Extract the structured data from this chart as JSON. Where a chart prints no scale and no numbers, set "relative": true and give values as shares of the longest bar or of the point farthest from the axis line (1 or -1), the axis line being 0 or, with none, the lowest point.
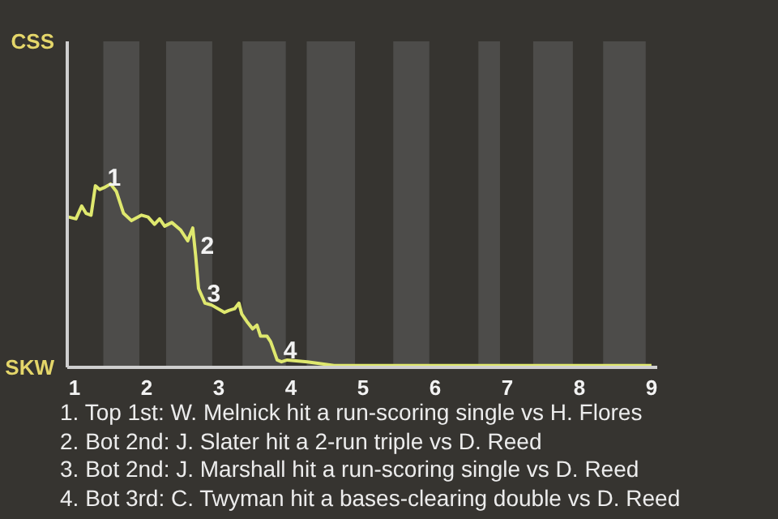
{
  "chart_data": {
    "type": "line",
    "relative": true,
    "x": [
      0.92,
      1.02,
      1.1,
      1.16,
      1.23,
      1.29,
      1.35,
      1.41,
      1.5,
      1.58,
      1.68,
      1.79,
      1.93,
      2.02,
      2.11,
      2.18,
      2.25,
      2.35,
      2.47,
      2.57,
      2.64,
      2.68,
      2.72,
      2.81,
      2.9,
      3.08,
      3.14,
      3.22,
      3.28,
      3.32,
      3.39,
      3.47,
      3.53,
      3.58,
      3.67,
      3.72,
      3.81,
      3.87,
      3.95,
      4.23,
      4.6,
      4.97,
      5.33,
      6.2,
      7.18,
      8.08,
      9
    ],
    "series": [
      {
        "color": "#dfe86e",
        "values": [
          0.82,
          0.81,
          0.88,
          0.84,
          0.83,
          0.99,
          0.97,
          0.98,
          1,
          0.96,
          0.84,
          0.8,
          0.83,
          0.82,
          0.78,
          0.81,
          0.77,
          0.79,
          0.75,
          0.69,
          0.76,
          0.61,
          0.43,
          0.35,
          0.34,
          0.3,
          0.31,
          0.32,
          0.35,
          0.29,
          0.25,
          0.21,
          0.23,
          0.17,
          0.17,
          0.14,
          0.04,
          0.03,
          0.04,
          0.03,
          0.01,
          0.01,
          0.01,
          0.01,
          0.01,
          0.01,
          0.01
        ]
      }
    ],
    "xlim": [
      0.9,
      9.08
    ],
    "xticks": [
      1,
      2,
      3,
      4,
      5,
      6,
      7,
      8,
      9
    ],
    "bands": [
      {
        "axis": "x",
        "from": 1.4,
        "to": 1.9,
        "color": "#4d4c4a"
      },
      {
        "axis": "x",
        "from": 2.27,
        "to": 2.91,
        "color": "#4d4c4a"
      },
      {
        "axis": "x",
        "from": 3.33,
        "to": 3.93,
        "color": "#4d4c4a"
      },
      {
        "axis": "x",
        "from": 4.22,
        "to": 4.89,
        "color": "#4d4c4a"
      },
      {
        "axis": "x",
        "from": 5.42,
        "to": 5.92,
        "color": "#4d4c4a"
      },
      {
        "axis": "x",
        "from": 6.6,
        "to": 6.9,
        "color": "#4d4c4a"
      },
      {
        "axis": "x",
        "from": 7.36,
        "to": 7.91,
        "color": "#4d4c4a"
      },
      {
        "axis": "x",
        "from": 8.33,
        "to": 8.92,
        "color": "#4d4c4a"
      }
    ],
    "annotations": [
      "CSS",
      "SKW",
      {
        "text": "1",
        "x": 1.39,
        "y": 0.98
      },
      {
        "text": "2",
        "x": 2.68,
        "y": 0.61
      },
      {
        "text": "3",
        "x": 2.77,
        "y": 0.35
      },
      {
        "text": "4",
        "x": 3.83,
        "y": 0.04
      },
      "1. Top 1st: W. Melnick hit a run-scoring single vs H. Flores",
      "2. Bot 2nd: J. Slater hit a 2-run triple vs D. Reed",
      "3. Bot 2nd: J. Marshall hit a run-scoring single vs D. Reed",
      "4. Bot 3rd: C. Twyman hit a bases-clearing double vs D. Reed"
    ]
  }
}
